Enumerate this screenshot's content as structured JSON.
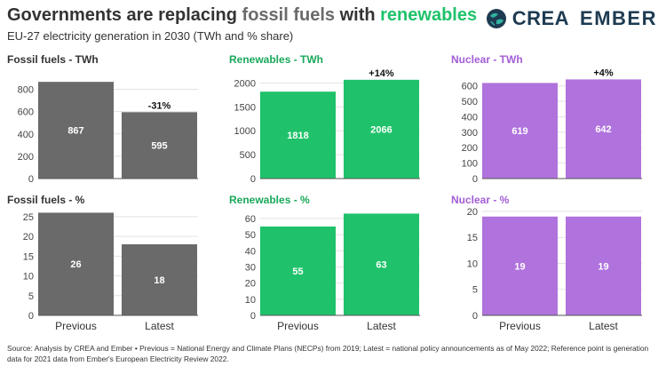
{
  "header": {
    "title_part1": "Governments are replacing ",
    "title_fossil": "fossil fuels",
    "title_part2": " with ",
    "title_renewables": "renewables",
    "subtitle": "EU-27 electricity generation in 2030 (TWh and % share)"
  },
  "logos": {
    "crea": "CREA",
    "ember": "EMBER"
  },
  "footer": {
    "source": "Source: Analysis by CREA and Ember • Previous = National Energy and Climate Plans (NECPs) from 2019; Latest = national policy announcements as of May 2022; Reference point is generation data for 2021 data from Ember's European Electricity Review 2022."
  },
  "colors": {
    "fossil": "#6a6a6a",
    "renewables": "#1fc26a",
    "nuclear": "#b072dd",
    "fossil_title": "#333333",
    "renewables_title": "#1aa85c",
    "nuclear_title": "#a25ed6",
    "axis": "#555555",
    "grid": "#e2e2e2"
  },
  "chart_data": [
    {
      "type": "bar",
      "title": "Fossil fuels - TWh",
      "categories": [
        "Previous",
        "Latest"
      ],
      "values": [
        867,
        595
      ],
      "ylim": [
        0,
        900
      ],
      "ticks": [
        0,
        200,
        400,
        600,
        800
      ],
      "change_label": "-31%",
      "color_key": "fossil",
      "title_color_key": "fossil_title"
    },
    {
      "type": "bar",
      "title": "Renewables - TWh",
      "categories": [
        "Previous",
        "Latest"
      ],
      "values": [
        1818,
        2066
      ],
      "ylim": [
        0,
        2100
      ],
      "ticks": [
        0,
        500,
        1000,
        1500,
        2000
      ],
      "change_label": "+14%",
      "color_key": "renewables",
      "title_color_key": "renewables_title"
    },
    {
      "type": "bar",
      "title": "Nuclear - TWh",
      "categories": [
        "Previous",
        "Latest"
      ],
      "values": [
        619,
        642
      ],
      "ylim": [
        0,
        650
      ],
      "ticks": [
        0,
        100,
        200,
        300,
        400,
        500,
        600
      ],
      "change_label": "+4%",
      "color_key": "nuclear",
      "title_color_key": "nuclear_title"
    },
    {
      "type": "bar",
      "title": "Fossil fuels - %",
      "categories": [
        "Previous",
        "Latest"
      ],
      "values": [
        26,
        18
      ],
      "ylim": [
        0,
        27
      ],
      "ticks": [
        0,
        5,
        10,
        15,
        20,
        25
      ],
      "change_label": "",
      "color_key": "fossil",
      "title_color_key": "fossil_title"
    },
    {
      "type": "bar",
      "title": "Renewables - %",
      "categories": [
        "Previous",
        "Latest"
      ],
      "values": [
        55,
        63
      ],
      "ylim": [
        0,
        66
      ],
      "ticks": [
        0,
        10,
        20,
        30,
        40,
        50,
        60
      ],
      "change_label": "",
      "color_key": "renewables",
      "title_color_key": "renewables_title"
    },
    {
      "type": "bar",
      "title": "Nuclear - %",
      "categories": [
        "Previous",
        "Latest"
      ],
      "values": [
        19,
        19
      ],
      "ylim": [
        0,
        20.5
      ],
      "ticks": [
        0,
        5,
        10,
        15,
        20
      ],
      "change_label": "",
      "color_key": "nuclear",
      "title_color_key": "nuclear_title"
    }
  ]
}
